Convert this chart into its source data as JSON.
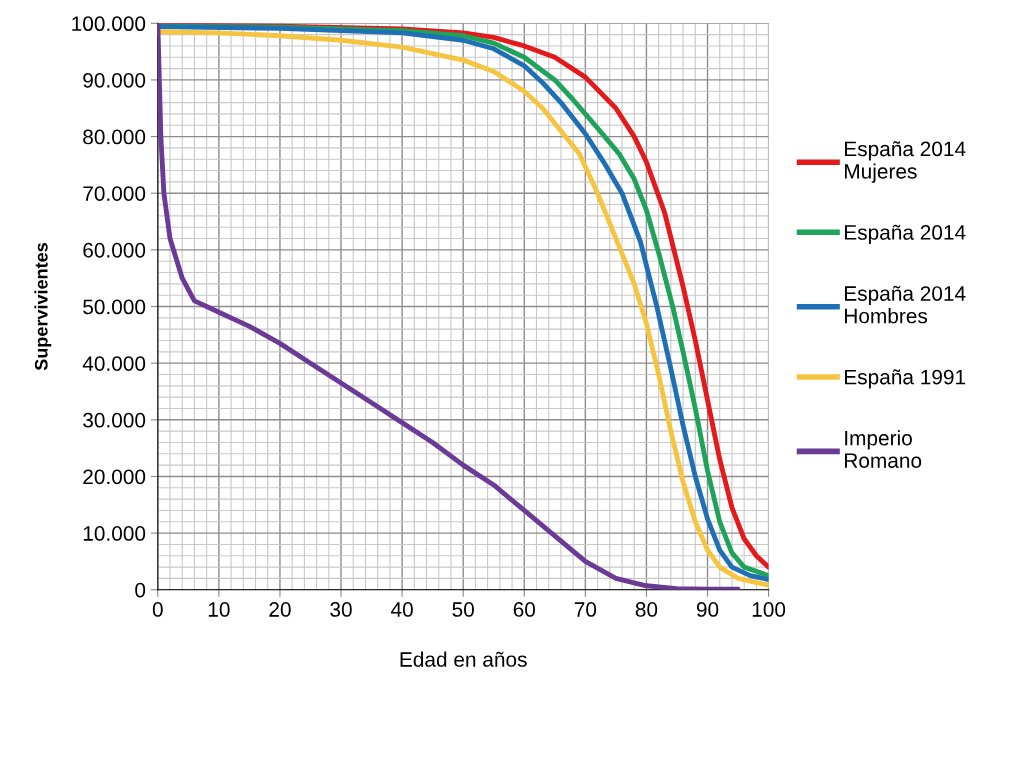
{
  "chart_data": {
    "type": "line",
    "xlabel": "Edad en años",
    "ylabel": "Supervivientes",
    "xlim": [
      0,
      100
    ],
    "xticks": [
      0,
      10,
      20,
      30,
      40,
      50,
      60,
      70,
      80,
      90,
      100
    ],
    "ylim": [
      0,
      100000
    ],
    "yticks": [
      {
        "value": 0,
        "label": "0"
      },
      {
        "value": 10000,
        "label": "10.000"
      },
      {
        "value": 20000,
        "label": "20.000"
      },
      {
        "value": 30000,
        "label": "30.000"
      },
      {
        "value": 40000,
        "label": "40.000"
      },
      {
        "value": 50000,
        "label": "50.000"
      },
      {
        "value": 60000,
        "label": "60.000"
      },
      {
        "value": 70000,
        "label": "70.000"
      },
      {
        "value": 80000,
        "label": "80.000"
      },
      {
        "value": 90000,
        "label": "90.000"
      },
      {
        "value": 100000,
        "label": "100.000"
      }
    ],
    "grid": true,
    "legend": "right",
    "marker": "none",
    "line_style": "solid",
    "series": [
      {
        "name": "España 2014\nMujeres",
        "color": "#e3191c",
        "x": [
          0,
          20,
          40,
          50,
          55,
          60,
          65,
          70,
          75,
          78,
          80,
          83,
          86,
          88,
          90,
          92,
          94,
          96,
          98,
          100
        ],
        "values": [
          99700,
          99500,
          99000,
          98300,
          97500,
          96000,
          94000,
          90500,
          85000,
          80000,
          75500,
          66500,
          53500,
          44000,
          33500,
          23000,
          14500,
          9000,
          6000,
          4000
        ]
      },
      {
        "name": "España 2014",
        "color": "#1fa35a",
        "x": [
          0,
          20,
          40,
          50,
          55,
          60,
          65,
          68,
          72,
          75.5,
          78,
          80,
          82,
          84.3,
          86,
          88,
          90,
          92,
          94,
          96,
          100
        ],
        "values": [
          99500,
          99300,
          98700,
          97800,
          96500,
          94000,
          90000,
          86500,
          81500,
          77000,
          72500,
          67000,
          59500,
          50000,
          42000,
          32000,
          21000,
          12000,
          6500,
          4000,
          2500
        ]
      },
      {
        "name": "España 2014\nHombres",
        "color": "#1f6fb5",
        "x": [
          0,
          20,
          40,
          50,
          55,
          60,
          63,
          66,
          70,
          73,
          76,
          79,
          81.7,
          84,
          86,
          88,
          90,
          92,
          94,
          97,
          100
        ],
        "values": [
          99400,
          99100,
          98300,
          97000,
          95500,
          92500,
          89500,
          86000,
          80500,
          75500,
          70000,
          61500,
          50000,
          39000,
          29000,
          20000,
          12500,
          7000,
          4000,
          2500,
          1800
        ]
      },
      {
        "name": "España 1991",
        "color": "#f5c542",
        "x": [
          0,
          10,
          20,
          30,
          40,
          50,
          55,
          60,
          63,
          66,
          69,
          72,
          75,
          78,
          80,
          82,
          84,
          86,
          88,
          90,
          92,
          95,
          100
        ],
        "values": [
          98500,
          98300,
          97800,
          97000,
          95800,
          93500,
          91500,
          88000,
          85000,
          81000,
          77000,
          70000,
          62000,
          54000,
          47000,
          38000,
          28000,
          19000,
          12000,
          7000,
          4000,
          2000,
          800
        ]
      },
      {
        "name": "Imperio\nRomano",
        "color": "#6b3a96",
        "x": [
          0,
          0.5,
          1,
          2,
          4,
          6,
          8,
          10,
          15,
          20,
          25,
          30,
          35,
          40,
          45,
          50,
          55,
          60,
          65,
          70,
          75,
          80,
          85,
          90,
          95
        ],
        "values": [
          100000,
          80000,
          70000,
          62000,
          55000,
          51000,
          50000,
          49000,
          46500,
          43500,
          40000,
          36500,
          33000,
          29500,
          26000,
          22000,
          18500,
          14000,
          9500,
          5000,
          2000,
          700,
          200,
          100,
          100
        ]
      }
    ]
  }
}
